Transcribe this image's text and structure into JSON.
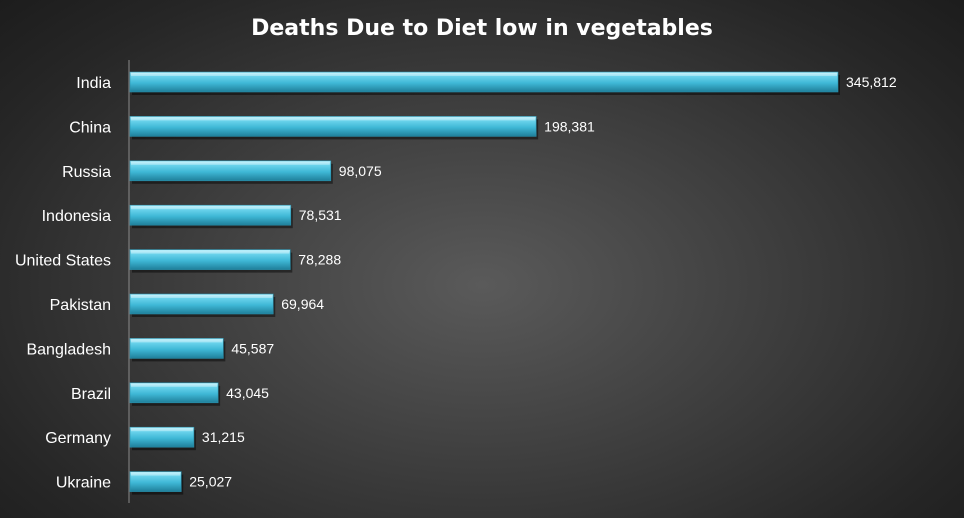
{
  "chart_data": {
    "type": "bar",
    "orientation": "horizontal",
    "title": "Deaths Due to Diet low in vegetables",
    "xlabel": "",
    "ylabel": "",
    "categories": [
      "India",
      "China",
      "Russia",
      "Indonesia",
      "United States",
      "Pakistan",
      "Bangladesh",
      "Brazil",
      "Germany",
      "Ukraine"
    ],
    "values": [
      345812,
      198381,
      98075,
      78531,
      78288,
      69964,
      45587,
      43045,
      31215,
      25027
    ],
    "value_labels": [
      "345,812",
      "198,381",
      "98,075",
      "78,531",
      "78,288",
      "69,964",
      "45,587",
      "43,045",
      "31,215",
      "25,027"
    ],
    "xlim": [
      0,
      345812
    ],
    "grid": false,
    "legend": "none",
    "bar_color": "#4cc6e0"
  }
}
